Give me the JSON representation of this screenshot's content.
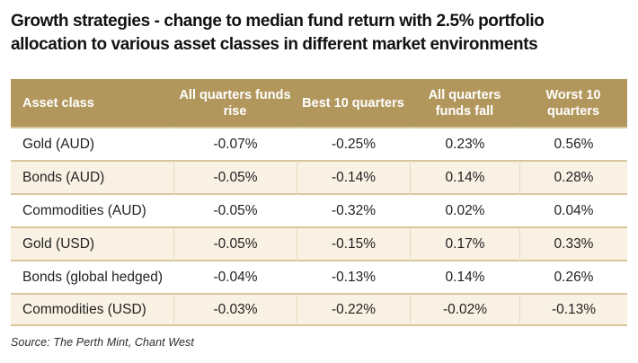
{
  "title_lines": [
    "Growth strategies - change to median fund return with 2.5% portfolio",
    "allocation to various asset classes in different market environments"
  ],
  "source": "Source: The Perth Mint, Chant West",
  "colors": {
    "header_bg": "#b2975c",
    "alt_row_bg": "#f9f2e4",
    "row_separator": "#d8c69c",
    "column_divider": "#e6dbbc",
    "title_text": "#121212",
    "header_text": "#ffffff"
  },
  "chart_data": {
    "type": "table",
    "title": "Growth strategies - change to median fund return with 2.5% portfolio allocation to various asset classes in different market environments",
    "columns": [
      "Asset class",
      "All quarters funds rise",
      "Best 10 quarters",
      "All quarters funds fall",
      "Worst 10 quarters"
    ],
    "rows": [
      {
        "asset": "Gold (AUD)",
        "values": [
          "-0.07%",
          "-0.25%",
          "0.23%",
          "0.56%"
        ]
      },
      {
        "asset": "Bonds (AUD)",
        "values": [
          "-0.05%",
          "-0.14%",
          "0.14%",
          "0.28%"
        ]
      },
      {
        "asset": "Commodities (AUD)",
        "values": [
          "-0.05%",
          "-0.32%",
          "0.02%",
          "0.04%"
        ]
      },
      {
        "asset": "Gold (USD)",
        "values": [
          "-0.05%",
          "-0.15%",
          "0.17%",
          "0.33%"
        ]
      },
      {
        "asset": "Bonds (global hedged)",
        "values": [
          "-0.04%",
          "-0.13%",
          "0.14%",
          "0.26%"
        ]
      },
      {
        "asset": "Commodities (USD)",
        "values": [
          "-0.03%",
          "-0.22%",
          "-0.02%",
          "-0.13%"
        ]
      }
    ],
    "source": "Source: The Perth Mint, Chant West"
  }
}
